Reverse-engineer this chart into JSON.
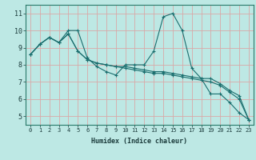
{
  "xlabel": "Humidex (Indice chaleur)",
  "bg_color": "#bde8e4",
  "grid_color": "#d9a8a8",
  "line_color": "#1a6e6e",
  "xlim": [
    -0.5,
    23.5
  ],
  "ylim": [
    4.5,
    11.5
  ],
  "xticks": [
    0,
    1,
    2,
    3,
    4,
    5,
    6,
    7,
    8,
    9,
    10,
    11,
    12,
    13,
    14,
    15,
    16,
    17,
    18,
    19,
    20,
    21,
    22,
    23
  ],
  "yticks": [
    5,
    6,
    7,
    8,
    9,
    10,
    11
  ],
  "series": [
    [
      8.6,
      9.2,
      9.6,
      9.3,
      10.0,
      10.0,
      8.4,
      7.9,
      7.6,
      7.4,
      8.0,
      8.0,
      8.0,
      8.8,
      10.8,
      11.0,
      10.0,
      7.8,
      7.2,
      6.3,
      6.3,
      5.8,
      5.2,
      4.8
    ],
    [
      8.6,
      9.2,
      9.6,
      9.3,
      9.8,
      8.8,
      8.3,
      8.1,
      8.0,
      7.9,
      7.9,
      7.8,
      7.7,
      7.6,
      7.6,
      7.5,
      7.4,
      7.3,
      7.2,
      7.2,
      6.9,
      6.5,
      6.2,
      4.8
    ],
    [
      8.6,
      9.2,
      9.6,
      9.3,
      9.8,
      8.8,
      8.3,
      8.1,
      8.0,
      7.9,
      7.8,
      7.7,
      7.6,
      7.5,
      7.5,
      7.4,
      7.3,
      7.2,
      7.1,
      7.0,
      6.8,
      6.4,
      6.0,
      4.8
    ]
  ],
  "xlabel_fontsize": 6.0,
  "tick_fontsize_x": 5.0,
  "tick_fontsize_y": 6.0
}
